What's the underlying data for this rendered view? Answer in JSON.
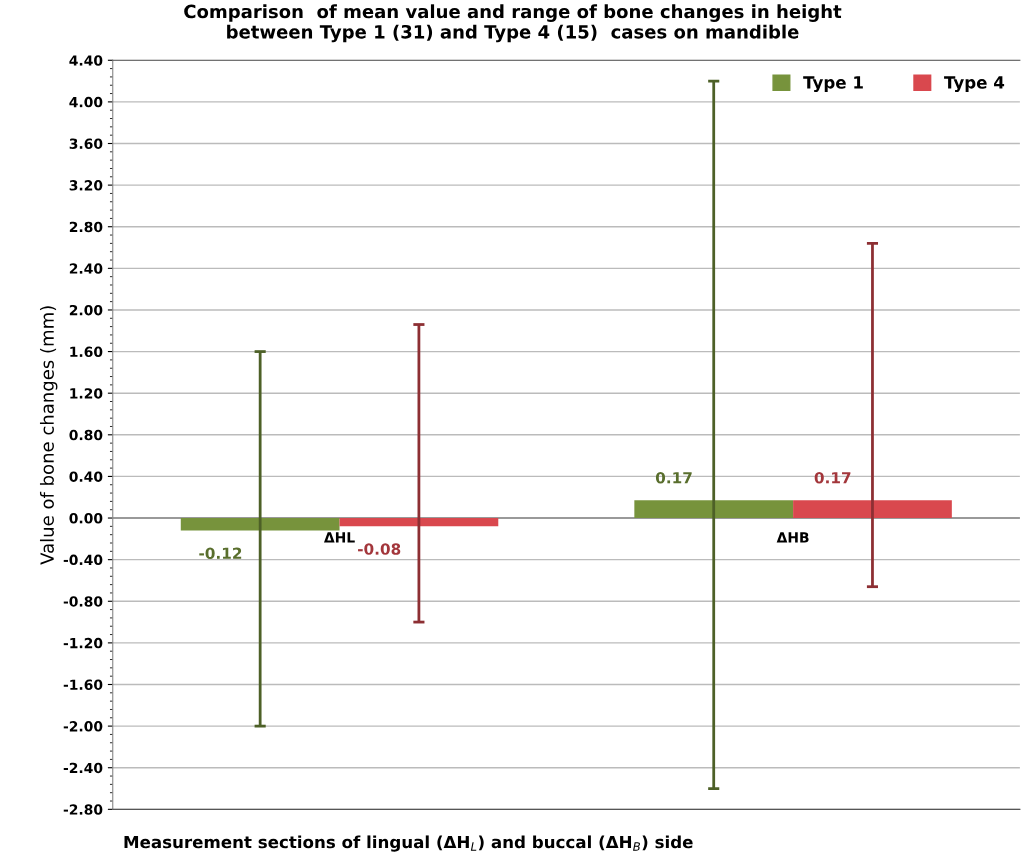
{
  "chart_data": {
    "type": "bar",
    "title": "Comparison  of mean value and range of bone changes in height\nbetween Type 1 (31) and Type 4 (15)  cases on mandible",
    "xlabel": "Measurement sections of lingual (ΔH$_{L}$) and buccal (ΔH$_{B}$) side",
    "ylabel": "Value of bone changes (mm)",
    "categories": [
      "ΔHL",
      "ΔHB"
    ],
    "series": [
      {
        "name": "Type 1",
        "color": "#77933c",
        "values": [
          -0.12,
          0.17
        ],
        "errors": [
          [
            -2.0,
            1.6
          ],
          [
            -2.6,
            4.2
          ]
        ]
      },
      {
        "name": "Type 4",
        "color": "#d9484e",
        "values": [
          -0.08,
          0.17
        ],
        "errors": [
          [
            -1.0,
            1.86
          ],
          [
            -0.66,
            2.64
          ]
        ]
      }
    ],
    "ylim": [
      -2.8,
      4.4
    ],
    "yticks": [
      {
        "value": -2.8,
        "label": "-2.80"
      },
      {
        "value": -2.4,
        "label": "-2.40"
      },
      {
        "value": -2.0,
        "label": "-2.00"
      },
      {
        "value": -1.6,
        "label": "-1.60"
      },
      {
        "value": -1.2,
        "label": "-1.20"
      },
      {
        "value": -0.8,
        "label": "-0.80"
      },
      {
        "value": -0.4,
        "label": "-0.40"
      },
      {
        "value": 0,
        "label": "0.00"
      },
      {
        "value": 0.4,
        "label": "0.40"
      },
      {
        "value": 0.8,
        "label": "0.80"
      },
      {
        "value": 1.2,
        "label": "1.20"
      },
      {
        "value": 1.6,
        "label": "1.60"
      },
      {
        "value": 2.0,
        "label": "2.00"
      },
      {
        "value": 2.4,
        "label": "2.40"
      },
      {
        "value": 2.8,
        "label": "2.80"
      },
      {
        "value": 3.2,
        "label": "3.20"
      },
      {
        "value": 3.6,
        "label": "3.60"
      },
      {
        "value": 4.0,
        "label": "4.00"
      },
      {
        "value": 4.4,
        "label": "4.40"
      }
    ],
    "grid": "y",
    "legend": "top right",
    "data_labels": true
  }
}
